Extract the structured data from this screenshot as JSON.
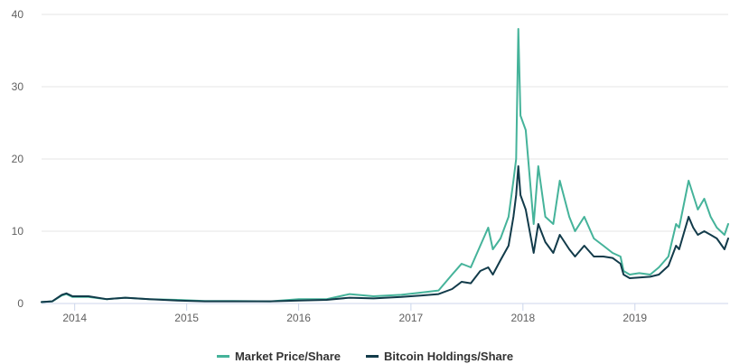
{
  "colors": {
    "market_price": "#45b39a",
    "holdings": "#123b4a",
    "grid": "#e6e6e6",
    "axis_text": "#606060"
  },
  "legend": {
    "market_price_label": "Market Price/Share",
    "holdings_label": "Bitcoin Holdings/Share"
  },
  "chart_data": {
    "type": "line",
    "title": "",
    "xlabel": "",
    "ylabel": "",
    "ylim": [
      0,
      40
    ],
    "xlim": [
      "2013-09-15",
      "2019-11-01"
    ],
    "y_ticks": [
      "0",
      "10",
      "20",
      "30",
      "40"
    ],
    "x_ticks": [
      "2014",
      "2015",
      "2016",
      "2017",
      "2018",
      "2019"
    ],
    "grid": "horizontal",
    "legend_position": "bottom-center",
    "series": [
      {
        "name": "Market Price/Share",
        "color": "#45b39a",
        "points": [
          [
            "2013-09-15",
            0.2
          ],
          [
            "2013-10-20",
            0.3
          ],
          [
            "2013-11-20",
            1.1
          ],
          [
            "2013-12-05",
            1.3
          ],
          [
            "2013-12-25",
            0.9
          ],
          [
            "2014-02-15",
            0.9
          ],
          [
            "2014-04-15",
            0.6
          ],
          [
            "2014-06-15",
            0.8
          ],
          [
            "2014-09-01",
            0.6
          ],
          [
            "2014-12-01",
            0.5
          ],
          [
            "2015-03-01",
            0.35
          ],
          [
            "2015-06-01",
            0.35
          ],
          [
            "2015-10-01",
            0.3
          ],
          [
            "2016-01-01",
            0.6
          ],
          [
            "2016-04-01",
            0.6
          ],
          [
            "2016-06-15",
            1.3
          ],
          [
            "2016-09-01",
            1.0
          ],
          [
            "2016-12-01",
            1.2
          ],
          [
            "2017-02-01",
            1.5
          ],
          [
            "2017-04-01",
            1.8
          ],
          [
            "2017-05-15",
            4.0
          ],
          [
            "2017-06-15",
            5.5
          ],
          [
            "2017-07-15",
            5.0
          ],
          [
            "2017-08-15",
            8.0
          ],
          [
            "2017-09-10",
            10.5
          ],
          [
            "2017-09-25",
            7.5
          ],
          [
            "2017-10-20",
            9.0
          ],
          [
            "2017-11-15",
            12.0
          ],
          [
            "2017-12-01",
            17.0
          ],
          [
            "2017-12-10",
            20.0
          ],
          [
            "2017-12-17",
            38.0
          ],
          [
            "2017-12-24",
            26.0
          ],
          [
            "2018-01-10",
            24.0
          ],
          [
            "2018-02-05",
            11.0
          ],
          [
            "2018-02-20",
            19.0
          ],
          [
            "2018-03-15",
            12.0
          ],
          [
            "2018-04-10",
            11.0
          ],
          [
            "2018-05-01",
            17.0
          ],
          [
            "2018-06-01",
            12.0
          ],
          [
            "2018-06-20",
            10.0
          ],
          [
            "2018-07-20",
            12.0
          ],
          [
            "2018-08-20",
            9.0
          ],
          [
            "2018-09-20",
            8.0
          ],
          [
            "2018-10-20",
            7.0
          ],
          [
            "2018-11-15",
            6.5
          ],
          [
            "2018-11-25",
            4.5
          ],
          [
            "2018-12-15",
            4.0
          ],
          [
            "2019-01-15",
            4.2
          ],
          [
            "2019-02-20",
            4.0
          ],
          [
            "2019-03-20",
            5.0
          ],
          [
            "2019-04-20",
            6.5
          ],
          [
            "2019-05-15",
            11.0
          ],
          [
            "2019-05-25",
            10.5
          ],
          [
            "2019-06-25",
            17.0
          ],
          [
            "2019-07-10",
            15.0
          ],
          [
            "2019-07-25",
            13.0
          ],
          [
            "2019-08-15",
            14.5
          ],
          [
            "2019-09-05",
            12.0
          ],
          [
            "2019-09-25",
            10.5
          ],
          [
            "2019-10-20",
            9.5
          ],
          [
            "2019-11-01",
            11.0
          ]
        ]
      },
      {
        "name": "Bitcoin Holdings/Share",
        "color": "#123b4a",
        "points": [
          [
            "2013-09-15",
            0.2
          ],
          [
            "2013-10-20",
            0.3
          ],
          [
            "2013-11-20",
            1.2
          ],
          [
            "2013-12-05",
            1.4
          ],
          [
            "2013-12-25",
            1.0
          ],
          [
            "2014-02-15",
            1.0
          ],
          [
            "2014-04-15",
            0.6
          ],
          [
            "2014-06-15",
            0.8
          ],
          [
            "2014-09-01",
            0.6
          ],
          [
            "2014-12-01",
            0.4
          ],
          [
            "2015-03-01",
            0.3
          ],
          [
            "2015-06-01",
            0.3
          ],
          [
            "2015-10-01",
            0.3
          ],
          [
            "2016-01-01",
            0.4
          ],
          [
            "2016-04-01",
            0.5
          ],
          [
            "2016-06-15",
            0.8
          ],
          [
            "2016-09-01",
            0.7
          ],
          [
            "2016-12-01",
            0.9
          ],
          [
            "2017-02-01",
            1.1
          ],
          [
            "2017-04-01",
            1.3
          ],
          [
            "2017-05-15",
            2.0
          ],
          [
            "2017-06-15",
            3.0
          ],
          [
            "2017-07-15",
            2.8
          ],
          [
            "2017-08-15",
            4.5
          ],
          [
            "2017-09-10",
            5.0
          ],
          [
            "2017-09-25",
            4.0
          ],
          [
            "2017-10-20",
            6.0
          ],
          [
            "2017-11-15",
            8.0
          ],
          [
            "2017-12-01",
            12.0
          ],
          [
            "2017-12-10",
            15.0
          ],
          [
            "2017-12-17",
            19.0
          ],
          [
            "2017-12-24",
            15.0
          ],
          [
            "2018-01-10",
            13.0
          ],
          [
            "2018-02-05",
            7.0
          ],
          [
            "2018-02-20",
            11.0
          ],
          [
            "2018-03-15",
            8.5
          ],
          [
            "2018-04-10",
            7.0
          ],
          [
            "2018-05-01",
            9.5
          ],
          [
            "2018-06-01",
            7.5
          ],
          [
            "2018-06-20",
            6.5
          ],
          [
            "2018-07-20",
            8.0
          ],
          [
            "2018-08-20",
            6.5
          ],
          [
            "2018-09-20",
            6.5
          ],
          [
            "2018-10-20",
            6.3
          ],
          [
            "2018-11-15",
            5.5
          ],
          [
            "2018-11-25",
            4.0
          ],
          [
            "2018-12-15",
            3.5
          ],
          [
            "2019-01-15",
            3.6
          ],
          [
            "2019-02-20",
            3.7
          ],
          [
            "2019-03-20",
            4.0
          ],
          [
            "2019-04-20",
            5.2
          ],
          [
            "2019-05-15",
            8.0
          ],
          [
            "2019-05-25",
            7.5
          ],
          [
            "2019-06-25",
            12.0
          ],
          [
            "2019-07-10",
            10.5
          ],
          [
            "2019-07-25",
            9.5
          ],
          [
            "2019-08-15",
            10.0
          ],
          [
            "2019-09-05",
            9.5
          ],
          [
            "2019-09-25",
            9.0
          ],
          [
            "2019-10-20",
            7.5
          ],
          [
            "2019-11-01",
            9.0
          ]
        ]
      }
    ]
  }
}
